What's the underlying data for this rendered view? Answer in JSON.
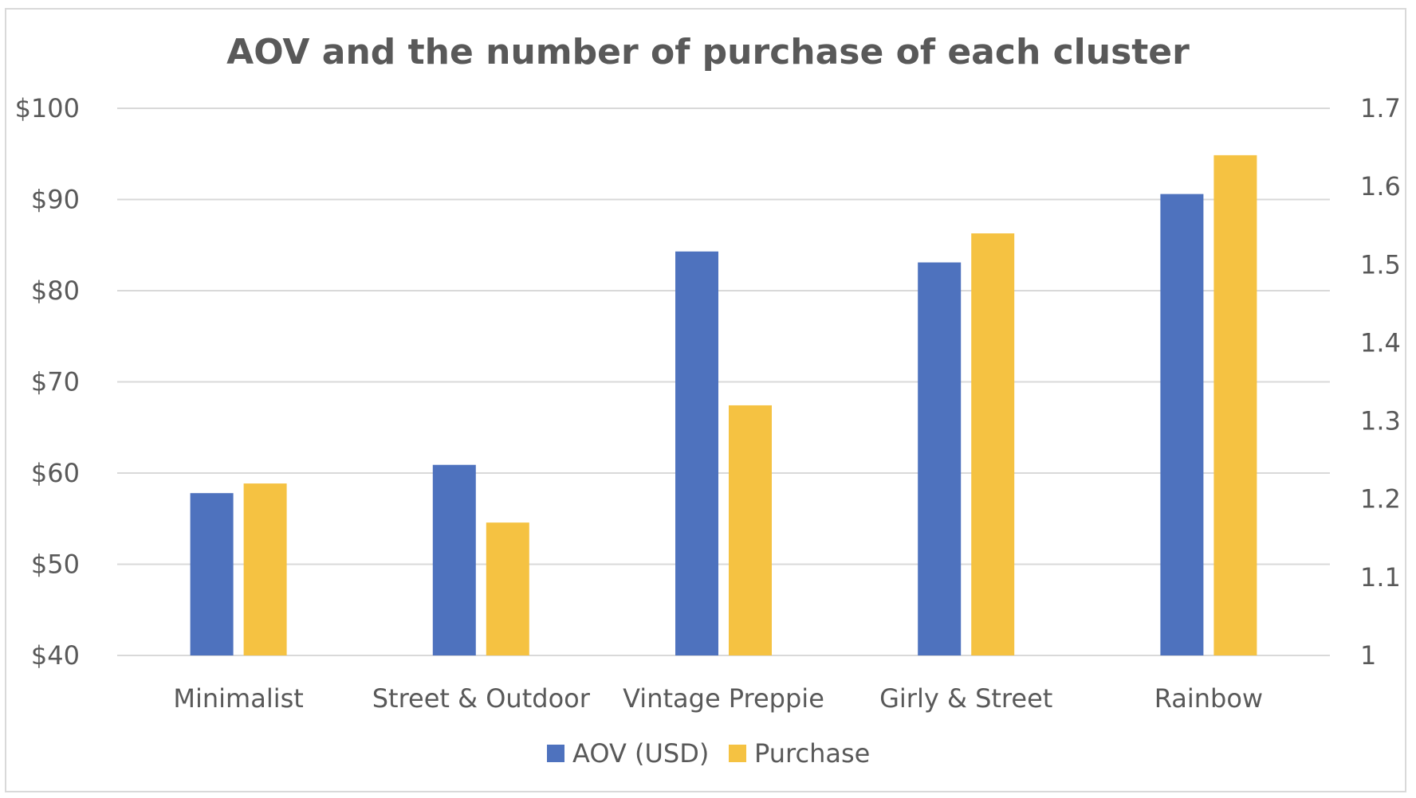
{
  "chart_data": {
    "type": "bar",
    "title": "AOV and the number of purchase of each cluster",
    "categories": [
      "Minimalist",
      "Street & Outdoor",
      "Vintage Preppie",
      "Girly & Street",
      "Rainbow"
    ],
    "series": [
      {
        "name": "AOV (USD)",
        "axis": "left",
        "color": "#4e72be",
        "values": [
          57.8,
          60.9,
          84.3,
          83.1,
          90.6
        ]
      },
      {
        "name": "Purchase",
        "axis": "right",
        "color": "#f5c242",
        "values": [
          1.22,
          1.17,
          1.32,
          1.54,
          1.64
        ]
      }
    ],
    "y_left": {
      "min": 40,
      "max": 100,
      "step": 10,
      "tick_labels": [
        "$40",
        "$50",
        "$60",
        "$70",
        "$80",
        "$90",
        "$100"
      ]
    },
    "y_right": {
      "min": 1,
      "max": 1.7,
      "step": 0.1,
      "tick_labels": [
        "1",
        "1.1",
        "1.2",
        "1.3",
        "1.4",
        "1.5",
        "1.6",
        "1.7"
      ]
    },
    "grid": true,
    "legend": "bottom-center"
  }
}
